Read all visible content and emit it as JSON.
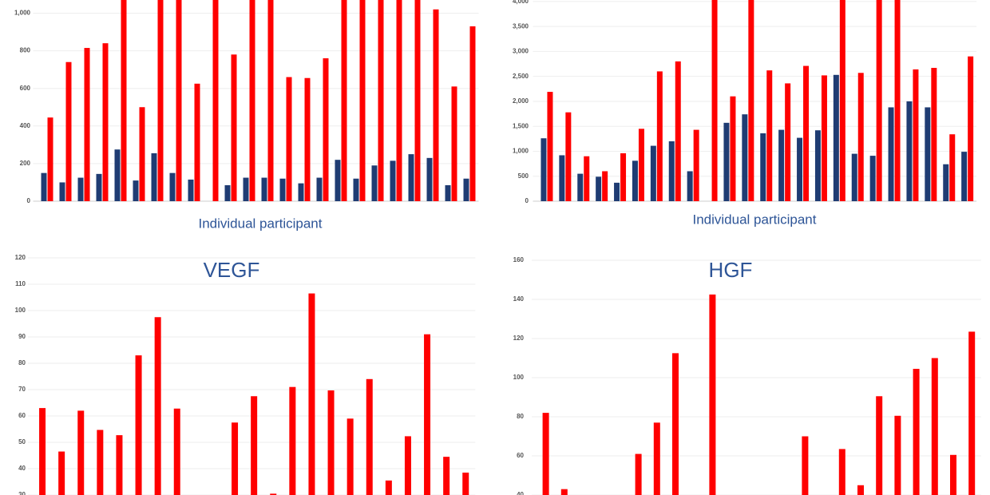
{
  "chart_data": [
    {
      "type": "bar",
      "xlabel": "Individual participant",
      "categories": [
        null,
        null,
        null,
        null,
        null,
        null,
        null,
        null,
        null,
        null,
        null,
        null,
        null,
        null,
        null,
        null,
        null,
        null,
        null,
        null,
        null,
        null,
        null,
        null
      ],
      "series": [
        {
          "color": "#1f3c73",
          "values": [
            150,
            100,
            125,
            145,
            275,
            110,
            255,
            150,
            115,
            0,
            85,
            125,
            125,
            120,
            95,
            125,
            220,
            120,
            190,
            215,
            250,
            230,
            85,
            120
          ]
        },
        {
          "color": "#ff0000",
          "values": [
            445,
            740,
            815,
            840,
            1100,
            500,
            1100,
            1100,
            625,
            1100,
            780,
            1100,
            1100,
            660,
            655,
            760,
            1100,
            1100,
            1100,
            1100,
            1100,
            1020,
            610,
            930
          ]
        }
      ],
      "ylim": [
        0,
        1070
      ],
      "yticks": [
        0,
        200,
        400,
        600,
        800,
        {
          "value": 1000,
          "label": "1,000"
        }
      ],
      "grid": true
    },
    {
      "type": "bar",
      "xlabel": "Individual participant",
      "categories": [
        null,
        null,
        null,
        null,
        null,
        null,
        null,
        null,
        null,
        null,
        null,
        null,
        null,
        null,
        null,
        null,
        null,
        null,
        null,
        null,
        null,
        null,
        null,
        null
      ],
      "series": [
        {
          "color": "#1f3c73",
          "values": [
            1260,
            920,
            550,
            490,
            370,
            810,
            1110,
            1200,
            600,
            0,
            1570,
            1740,
            1360,
            1430,
            1270,
            1420,
            2530,
            950,
            910,
            1880,
            2000,
            1880,
            740,
            990
          ]
        },
        {
          "color": "#ff0000",
          "values": [
            2190,
            1780,
            900,
            600,
            960,
            1450,
            2600,
            2800,
            1430,
            4100,
            2100,
            4100,
            2620,
            2360,
            2710,
            2520,
            4100,
            2570,
            4100,
            4100,
            2640,
            2670,
            1340,
            2900
          ]
        }
      ],
      "ylim": [
        0,
        4030
      ],
      "yticks": [
        0,
        500,
        {
          "value": 1000,
          "label": "1,000"
        },
        {
          "value": 1500,
          "label": "1,500"
        },
        {
          "value": 2000,
          "label": "2,000"
        },
        {
          "value": 2500,
          "label": "2,500"
        },
        {
          "value": 3000,
          "label": "3,000"
        },
        {
          "value": 3500,
          "label": "3,500"
        },
        {
          "value": 4000,
          "label": "4,000"
        }
      ],
      "grid": true
    },
    {
      "type": "bar",
      "title": "VEGF",
      "categories": [
        null,
        null,
        null,
        null,
        null,
        null,
        null,
        null,
        null,
        null,
        null,
        null,
        null,
        null,
        null,
        null,
        null,
        null,
        null,
        null,
        null,
        null,
        null
      ],
      "series": [
        {
          "color": "#ff0000",
          "values": [
            63,
            46.5,
            62,
            54.7,
            52.7,
            83,
            97.5,
            62.8,
            null,
            29.8,
            57.5,
            67.5,
            30.5,
            71,
            106.5,
            69.7,
            59,
            74,
            35.5,
            52.3,
            91,
            44.5,
            38.5
          ]
        }
      ],
      "ylim": [
        30,
        120
      ],
      "yticks": [
        30,
        40,
        50,
        60,
        70,
        80,
        90,
        100,
        110,
        120
      ],
      "grid": true
    },
    {
      "type": "bar",
      "title": "HGF",
      "categories": [
        null,
        null,
        null,
        null,
        null,
        null,
        null,
        null,
        null,
        null,
        null,
        null,
        null,
        null,
        null,
        null,
        null,
        null,
        null,
        null,
        null,
        null,
        null,
        null
      ],
      "series": [
        {
          "color": "#ff0000",
          "values": [
            82,
            43,
            null,
            null,
            null,
            61,
            77,
            112.5,
            null,
            142.5,
            null,
            null,
            null,
            null,
            70,
            null,
            63.5,
            45,
            90.5,
            80.5,
            104.5,
            110,
            60.5,
            123.5
          ]
        }
      ],
      "ylim": [
        40,
        160
      ],
      "yticks": [
        40,
        60,
        80,
        100,
        120,
        140,
        160
      ],
      "grid": true
    }
  ]
}
